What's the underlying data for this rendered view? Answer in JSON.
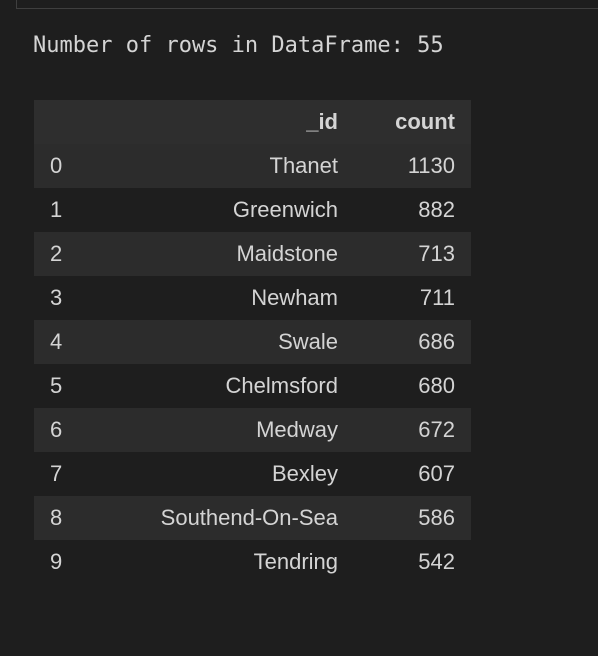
{
  "output": {
    "stdout_text": "Number of rows in DataFrame: 55"
  },
  "table": {
    "columns": [
      "",
      "_id",
      "count"
    ],
    "rows": [
      {
        "index": "0",
        "id": "Thanet",
        "count": "1130"
      },
      {
        "index": "1",
        "id": "Greenwich",
        "count": "882"
      },
      {
        "index": "2",
        "id": "Maidstone",
        "count": "713"
      },
      {
        "index": "3",
        "id": "Newham",
        "count": "711"
      },
      {
        "index": "4",
        "id": "Swale",
        "count": "686"
      },
      {
        "index": "5",
        "id": "Chelmsford",
        "count": "680"
      },
      {
        "index": "6",
        "id": "Medway",
        "count": "672"
      },
      {
        "index": "7",
        "id": "Bexley",
        "count": "607"
      },
      {
        "index": "8",
        "id": "Southend-On-Sea",
        "count": "586"
      },
      {
        "index": "9",
        "id": "Tendring",
        "count": "542"
      }
    ]
  }
}
